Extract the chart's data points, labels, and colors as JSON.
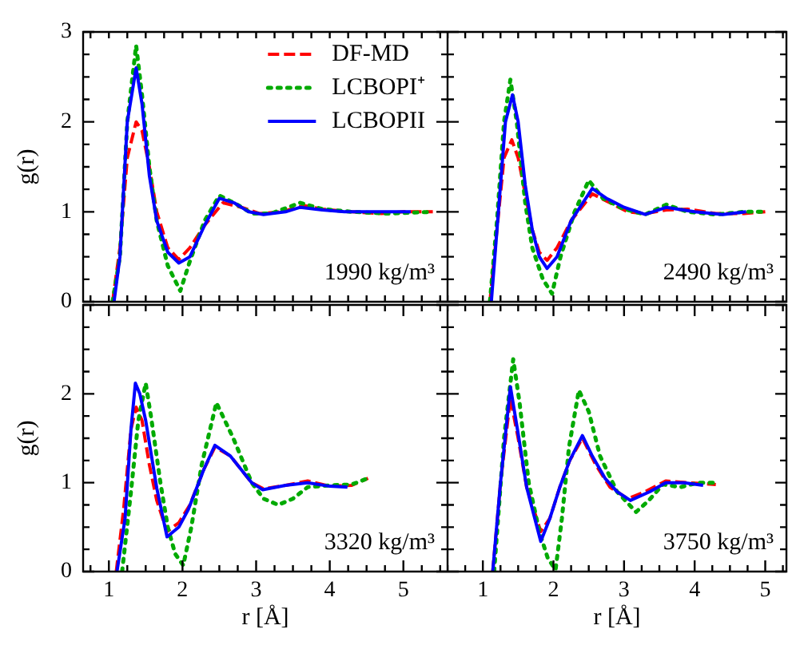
{
  "chart_data": [
    {
      "type": "line",
      "ylabel": "g(r)",
      "xlim": [
        0.65,
        5.6
      ],
      "ylim": [
        0,
        3
      ],
      "tick_labels": "y",
      "legend": "top right",
      "grid": false,
      "xticks": [
        {
          "value": 0.75,
          "label": null
        },
        {
          "value": 1,
          "label": null
        },
        {
          "value": 1.25,
          "label": null
        },
        {
          "value": 1.5,
          "label": null
        },
        {
          "value": 1.75,
          "label": null
        },
        {
          "value": 2,
          "label": null
        },
        {
          "value": 2.25,
          "label": null
        },
        {
          "value": 2.5,
          "label": null
        },
        {
          "value": 2.75,
          "label": null
        },
        {
          "value": 3,
          "label": null
        },
        {
          "value": 3.25,
          "label": null
        },
        {
          "value": 3.5,
          "label": null
        },
        {
          "value": 3.75,
          "label": null
        },
        {
          "value": 4,
          "label": null
        },
        {
          "value": 4.25,
          "label": null
        },
        {
          "value": 4.5,
          "label": null
        },
        {
          "value": 4.75,
          "label": null
        },
        {
          "value": 5,
          "label": null
        },
        {
          "value": 5.25,
          "label": null
        },
        {
          "value": 5.5,
          "label": null
        }
      ],
      "yticks": [
        0,
        {
          "value": 0.25,
          "label": null
        },
        {
          "value": 0.5,
          "label": null
        },
        {
          "value": 0.75,
          "label": null
        },
        1,
        {
          "value": 1.25,
          "label": null
        },
        {
          "value": 1.5,
          "label": null
        },
        {
          "value": 1.75,
          "label": null
        },
        2,
        {
          "value": 2.25,
          "label": null
        },
        {
          "value": 2.5,
          "label": null
        },
        {
          "value": 2.75,
          "label": null
        },
        3
      ],
      "annotations": [
        "1990 kg/m³"
      ],
      "series": [
        {
          "name": "DF-MD",
          "color": "#ff0000",
          "line_style": "dashed",
          "x": [
            1.05,
            1.15,
            1.25,
            1.37,
            1.45,
            1.55,
            1.65,
            1.8,
            1.95,
            2.1,
            2.3,
            2.55,
            2.8,
            3.05,
            3.35,
            3.65,
            3.9,
            4.3,
            4.7,
            5.0,
            5.4
          ],
          "values": [
            0,
            0.6,
            1.6,
            2.0,
            1.9,
            1.5,
            1.0,
            0.6,
            0.47,
            0.6,
            0.85,
            1.1,
            1.05,
            0.98,
            1.0,
            1.07,
            1.03,
            1.0,
            0.98,
            1.0,
            1.0
          ]
        },
        {
          "name": "LCBOPI⁺",
          "color": "#00aa00",
          "line_style": "dotted",
          "x": [
            1.05,
            1.15,
            1.25,
            1.37,
            1.45,
            1.55,
            1.65,
            1.8,
            1.97,
            2.1,
            2.3,
            2.5,
            2.7,
            2.95,
            3.2,
            3.6,
            3.9,
            4.3,
            4.8,
            5.4
          ],
          "values": [
            0,
            0.5,
            2.0,
            2.85,
            2.3,
            1.5,
            0.9,
            0.4,
            0.12,
            0.45,
            0.9,
            1.18,
            1.1,
            0.98,
            0.98,
            1.1,
            1.03,
            1.0,
            0.98,
            1.0
          ]
        },
        {
          "name": "LCBOPII",
          "color": "#0000ff",
          "line_style": "solid",
          "x": [
            1.07,
            1.15,
            1.25,
            1.37,
            1.45,
            1.55,
            1.65,
            1.8,
            1.95,
            2.1,
            2.3,
            2.5,
            2.7,
            2.9,
            3.1,
            3.4,
            3.6,
            3.9,
            4.2,
            4.6,
            5.1
          ],
          "values": [
            0,
            0.5,
            2.0,
            2.6,
            2.2,
            1.4,
            0.9,
            0.55,
            0.43,
            0.5,
            0.85,
            1.15,
            1.1,
            1.0,
            0.97,
            1.0,
            1.05,
            1.02,
            1.0,
            1.0,
            1.0
          ]
        }
      ]
    },
    {
      "type": "line",
      "xlim": [
        0.5,
        5.3
      ],
      "ylim": [
        0,
        3
      ],
      "tick_labels": false,
      "grid": false,
      "xticks": [
        {
          "value": 0.5,
          "label": null
        },
        {
          "value": 0.75,
          "label": null
        },
        {
          "value": 1,
          "label": null
        },
        {
          "value": 1.25,
          "label": null
        },
        {
          "value": 1.5,
          "label": null
        },
        {
          "value": 1.75,
          "label": null
        },
        {
          "value": 2,
          "label": null
        },
        {
          "value": 2.25,
          "label": null
        },
        {
          "value": 2.5,
          "label": null
        },
        {
          "value": 2.75,
          "label": null
        },
        {
          "value": 3,
          "label": null
        },
        {
          "value": 3.25,
          "label": null
        },
        {
          "value": 3.5,
          "label": null
        },
        {
          "value": 3.75,
          "label": null
        },
        {
          "value": 4,
          "label": null
        },
        {
          "value": 4.25,
          "label": null
        },
        {
          "value": 4.5,
          "label": null
        },
        {
          "value": 4.75,
          "label": null
        },
        {
          "value": 5,
          "label": null
        },
        {
          "value": 5.25,
          "label": null
        }
      ],
      "yticks": [
        {
          "value": 0,
          "label": null
        },
        {
          "value": 0.25,
          "label": null
        },
        {
          "value": 0.5,
          "label": null
        },
        {
          "value": 0.75,
          "label": null
        },
        {
          "value": 1,
          "label": null
        },
        {
          "value": 1.25,
          "label": null
        },
        {
          "value": 1.5,
          "label": null
        },
        {
          "value": 1.75,
          "label": null
        },
        {
          "value": 2,
          "label": null
        },
        {
          "value": 2.25,
          "label": null
        },
        {
          "value": 2.5,
          "label": null
        },
        {
          "value": 2.75,
          "label": null
        },
        {
          "value": 3,
          "label": null
        }
      ],
      "annotations": [
        "2490 kg/m³"
      ],
      "series": [
        {
          "color": "#ff0000",
          "line_style": "dashed",
          "x": [
            1.1,
            1.2,
            1.3,
            1.41,
            1.5,
            1.6,
            1.7,
            1.8,
            1.91,
            2.05,
            2.25,
            2.55,
            2.8,
            3.05,
            3.3,
            3.6,
            3.9,
            4.3,
            4.7,
            5.0
          ],
          "values": [
            0,
            0.8,
            1.6,
            1.8,
            1.6,
            1.2,
            0.8,
            0.55,
            0.46,
            0.6,
            0.9,
            1.2,
            1.1,
            1.0,
            0.98,
            1.02,
            1.03,
            0.98,
            0.98,
            1.0
          ]
        },
        {
          "color": "#00aa00",
          "line_style": "dotted",
          "x": [
            1.1,
            1.2,
            1.3,
            1.39,
            1.48,
            1.6,
            1.7,
            1.85,
            1.98,
            2.1,
            2.3,
            2.5,
            2.7,
            3.0,
            3.3,
            3.6,
            3.9,
            4.3,
            4.7,
            5.0
          ],
          "values": [
            0,
            0.9,
            2.0,
            2.47,
            2.0,
            1.1,
            0.6,
            0.25,
            0.09,
            0.5,
            1.0,
            1.35,
            1.15,
            1.03,
            0.97,
            1.08,
            1.0,
            0.97,
            1.0,
            1.0
          ]
        },
        {
          "color": "#0000ff",
          "line_style": "solid",
          "x": [
            1.12,
            1.22,
            1.32,
            1.42,
            1.5,
            1.6,
            1.7,
            1.8,
            1.91,
            2.05,
            2.25,
            2.55,
            2.75,
            3.0,
            3.3,
            3.6,
            4.0,
            4.4,
            4.73
          ],
          "values": [
            0,
            1.0,
            2.0,
            2.3,
            2.0,
            1.3,
            0.8,
            0.5,
            0.37,
            0.5,
            0.9,
            1.26,
            1.15,
            1.05,
            0.97,
            1.05,
            1.0,
            0.97,
            1.0
          ]
        }
      ]
    },
    {
      "type": "line",
      "xlabel": "r [Å]",
      "ylabel": "g(r)",
      "xlim": [
        0.65,
        5.6
      ],
      "ylim": [
        0,
        3
      ],
      "grid": false,
      "xticks": [
        {
          "value": 0.75,
          "label": null
        },
        1,
        {
          "value": 1.25,
          "label": null
        },
        {
          "value": 1.5,
          "label": null
        },
        {
          "value": 1.75,
          "label": null
        },
        2,
        {
          "value": 2.25,
          "label": null
        },
        {
          "value": 2.5,
          "label": null
        },
        {
          "value": 2.75,
          "label": null
        },
        3,
        {
          "value": 3.25,
          "label": null
        },
        {
          "value": 3.5,
          "label": null
        },
        {
          "value": 3.75,
          "label": null
        },
        4,
        {
          "value": 4.25,
          "label": null
        },
        {
          "value": 4.5,
          "label": null
        },
        {
          "value": 4.75,
          "label": null
        },
        5,
        {
          "value": 5.25,
          "label": null
        },
        {
          "value": 5.5,
          "label": null
        }
      ],
      "yticks": [
        0,
        {
          "value": 0.25,
          "label": null
        },
        {
          "value": 0.5,
          "label": null
        },
        {
          "value": 0.75,
          "label": null
        },
        1,
        {
          "value": 1.25,
          "label": null
        },
        {
          "value": 1.5,
          "label": null
        },
        {
          "value": 1.75,
          "label": null
        },
        2,
        {
          "value": 2.25,
          "label": null
        },
        {
          "value": 2.5,
          "label": null
        },
        {
          "value": 2.75,
          "label": null
        },
        {
          "value": 3,
          "label": null
        }
      ],
      "annotations": [
        "3320 kg/m³"
      ],
      "series": [
        {
          "color": "#ff0000",
          "line_style": "dashed",
          "x": [
            1.1,
            1.2,
            1.3,
            1.37,
            1.45,
            1.55,
            1.65,
            1.79,
            1.95,
            2.1,
            2.29,
            2.44,
            2.65,
            2.94,
            3.1,
            3.4,
            3.7,
            4.0,
            4.3,
            4.52
          ],
          "values": [
            0,
            0.7,
            1.6,
            1.85,
            1.7,
            1.2,
            0.8,
            0.45,
            0.55,
            0.75,
            1.15,
            1.4,
            1.3,
            1.0,
            0.93,
            0.97,
            1.02,
            0.96,
            0.97,
            1.05
          ]
        },
        {
          "color": "#00aa00",
          "line_style": "dotted",
          "x": [
            1.18,
            1.3,
            1.4,
            1.5,
            1.58,
            1.7,
            1.8,
            1.9,
            2.01,
            2.12,
            2.26,
            2.46,
            2.69,
            2.94,
            3.1,
            3.3,
            3.5,
            3.7,
            4.0,
            4.3,
            4.52
          ],
          "values": [
            0,
            0.9,
            1.7,
            2.12,
            1.7,
            1.0,
            0.5,
            0.2,
            0.07,
            0.5,
            1.2,
            1.9,
            1.5,
            1.0,
            0.82,
            0.75,
            0.82,
            0.95,
            0.97,
            0.98,
            1.05
          ]
        },
        {
          "color": "#0000ff",
          "line_style": "solid",
          "x": [
            1.11,
            1.22,
            1.3,
            1.36,
            1.42,
            1.5,
            1.65,
            1.79,
            1.95,
            2.08,
            2.29,
            2.44,
            2.65,
            2.94,
            3.09,
            3.4,
            3.7,
            4.0,
            4.24
          ],
          "values": [
            0,
            0.6,
            1.6,
            2.12,
            2.0,
            1.7,
            0.94,
            0.39,
            0.5,
            0.7,
            1.15,
            1.42,
            1.3,
            1.0,
            0.92,
            0.97,
            1.0,
            0.96,
            0.95
          ]
        }
      ]
    },
    {
      "type": "line",
      "xlabel": "r [Å]",
      "xlim": [
        0.5,
        5.3
      ],
      "ylim": [
        0,
        3
      ],
      "tick_labels": "x",
      "grid": false,
      "xticks": [
        {
          "value": 0.5,
          "label": null
        },
        {
          "value": 0.75,
          "label": null
        },
        1,
        {
          "value": 1.25,
          "label": null
        },
        {
          "value": 1.5,
          "label": null
        },
        {
          "value": 1.75,
          "label": null
        },
        2,
        {
          "value": 2.25,
          "label": null
        },
        {
          "value": 2.5,
          "label": null
        },
        {
          "value": 2.75,
          "label": null
        },
        3,
        {
          "value": 3.25,
          "label": null
        },
        {
          "value": 3.5,
          "label": null
        },
        {
          "value": 3.75,
          "label": null
        },
        4,
        {
          "value": 4.25,
          "label": null
        },
        {
          "value": 4.5,
          "label": null
        },
        {
          "value": 4.75,
          "label": null
        },
        5,
        {
          "value": 5.25,
          "label": null
        }
      ],
      "yticks": [
        {
          "value": 0,
          "label": null
        },
        {
          "value": 0.25,
          "label": null
        },
        {
          "value": 0.5,
          "label": null
        },
        {
          "value": 0.75,
          "label": null
        },
        {
          "value": 1,
          "label": null
        },
        {
          "value": 1.25,
          "label": null
        },
        {
          "value": 1.5,
          "label": null
        },
        {
          "value": 1.75,
          "label": null
        },
        {
          "value": 2,
          "label": null
        },
        {
          "value": 2.25,
          "label": null
        },
        {
          "value": 2.5,
          "label": null
        },
        {
          "value": 2.75,
          "label": null
        },
        {
          "value": 3,
          "label": null
        }
      ],
      "annotations": [
        "3750 kg/m³"
      ],
      "series": [
        {
          "color": "#ff0000",
          "line_style": "dashed",
          "x": [
            1.14,
            1.25,
            1.39,
            1.5,
            1.62,
            1.82,
            1.95,
            2.09,
            2.23,
            2.41,
            2.6,
            2.8,
            3.05,
            3.3,
            3.59,
            3.9,
            4.3
          ],
          "values": [
            0,
            1.0,
            1.95,
            1.5,
            0.95,
            0.45,
            0.6,
            0.95,
            1.25,
            1.5,
            1.2,
            0.95,
            0.82,
            0.9,
            1.02,
            1.0,
            0.98
          ]
        },
        {
          "color": "#00aa00",
          "line_style": "dotted",
          "x": [
            1.16,
            1.3,
            1.43,
            1.52,
            1.65,
            1.8,
            1.92,
            2.03,
            2.12,
            2.22,
            2.36,
            2.5,
            2.66,
            2.9,
            3.17,
            3.35,
            3.55,
            3.8,
            4.05,
            4.3
          ],
          "values": [
            0,
            1.5,
            2.39,
            1.9,
            1.0,
            0.45,
            0.15,
            0.02,
            0.6,
            1.4,
            2.04,
            1.8,
            1.3,
            0.9,
            0.67,
            0.8,
            0.98,
            0.95,
            1.0,
            1.0
          ]
        },
        {
          "color": "#0000ff",
          "line_style": "solid",
          "x": [
            1.14,
            1.25,
            1.39,
            1.5,
            1.62,
            1.82,
            1.95,
            2.09,
            2.23,
            2.41,
            2.55,
            2.73,
            2.9,
            3.09,
            3.37,
            3.59,
            3.85,
            4.12
          ],
          "values": [
            0,
            1.0,
            2.08,
            1.55,
            0.95,
            0.34,
            0.6,
            0.95,
            1.25,
            1.53,
            1.3,
            1.05,
            0.9,
            0.8,
            0.9,
            1.0,
            1.0,
            0.97
          ]
        }
      ]
    }
  ]
}
